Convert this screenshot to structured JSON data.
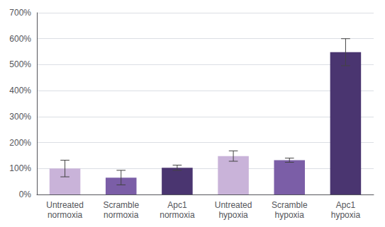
{
  "chart_data": {
    "type": "bar",
    "categories": [
      "Untreated\nnormoxia",
      "Scramble\nnormoxia",
      "Apc1\nnormoxia",
      "Untreated\nhypoxia",
      "Scramble\nhypoxia",
      "Apc1\nhypoxia"
    ],
    "values": [
      100,
      65,
      103,
      148,
      132,
      548
    ],
    "errors": [
      32,
      28,
      10,
      20,
      8,
      52
    ],
    "colors": [
      "#c9b3d9",
      "#7b5ea7",
      "#4a3570",
      "#c9b3d9",
      "#7b5ea7",
      "#4a3570"
    ],
    "ylim": [
      0,
      700
    ],
    "yticks": [
      {
        "value": 0,
        "label": "0%"
      },
      {
        "value": 100,
        "label": "100%"
      },
      {
        "value": 200,
        "label": "200%"
      },
      {
        "value": 300,
        "label": "300%"
      },
      {
        "value": 400,
        "label": "400%"
      },
      {
        "value": 500,
        "label": "500%"
      },
      {
        "value": 600,
        "label": "600%"
      },
      {
        "value": 700,
        "label": "700%"
      }
    ],
    "grid": true
  }
}
